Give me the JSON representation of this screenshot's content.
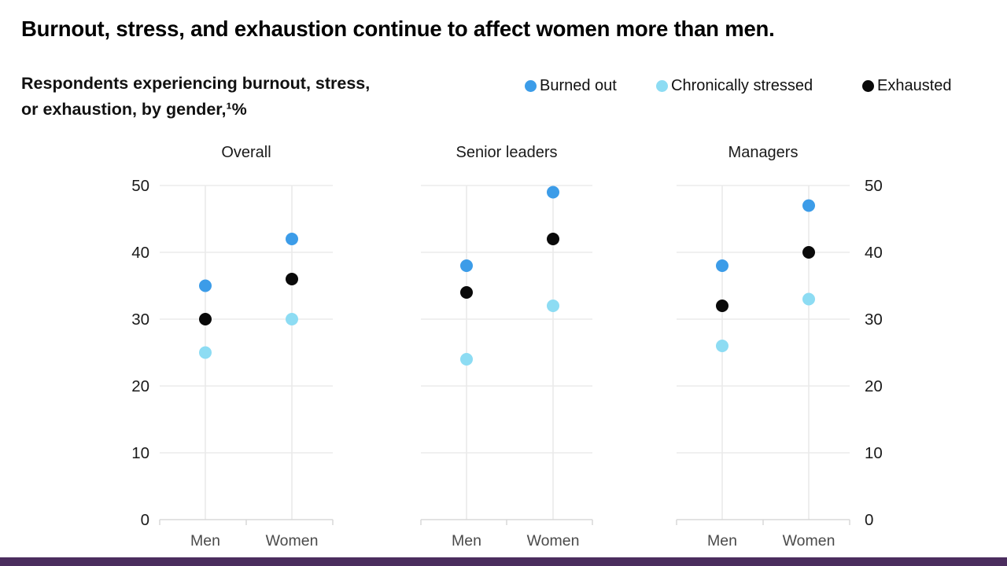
{
  "colors": {
    "accent_bar": "#4b2d5e",
    "grid": "#ececec",
    "column_line": "#e9e9e9",
    "axis": "#d9d9d9",
    "text_primary": "#1a1a1a",
    "text_secondary": "#4a4a4a"
  },
  "chart_data": {
    "type": "scatter",
    "title": "Burnout, stress, and exhaustion continue to affect women more than men.",
    "subtitle_line1": "Respondents experiencing burnout, stress,",
    "subtitle_line2": "or exhaustion, by gender,¹%",
    "unit": "%",
    "grid": true,
    "legend_position": "top-right",
    "ylim": [
      0,
      50
    ],
    "yticks": [
      0,
      10,
      20,
      30,
      40,
      50
    ],
    "categories": [
      "Men",
      "Women"
    ],
    "series": [
      {
        "name": "Burned out",
        "color": "#3c9ce8"
      },
      {
        "name": "Chronically stressed",
        "color": "#8ddcf3"
      },
      {
        "name": "Exhausted",
        "color": "#0a0a0a"
      }
    ],
    "panels": [
      {
        "title": "Overall",
        "series_values": [
          [
            35,
            42
          ],
          [
            25,
            30
          ],
          [
            30,
            36
          ]
        ]
      },
      {
        "title": "Senior leaders",
        "series_values": [
          [
            38,
            49
          ],
          [
            24,
            32
          ],
          [
            34,
            42
          ]
        ]
      },
      {
        "title": "Managers",
        "series_values": [
          [
            38,
            47
          ],
          [
            26,
            33
          ],
          [
            32,
            40
          ]
        ]
      }
    ]
  }
}
